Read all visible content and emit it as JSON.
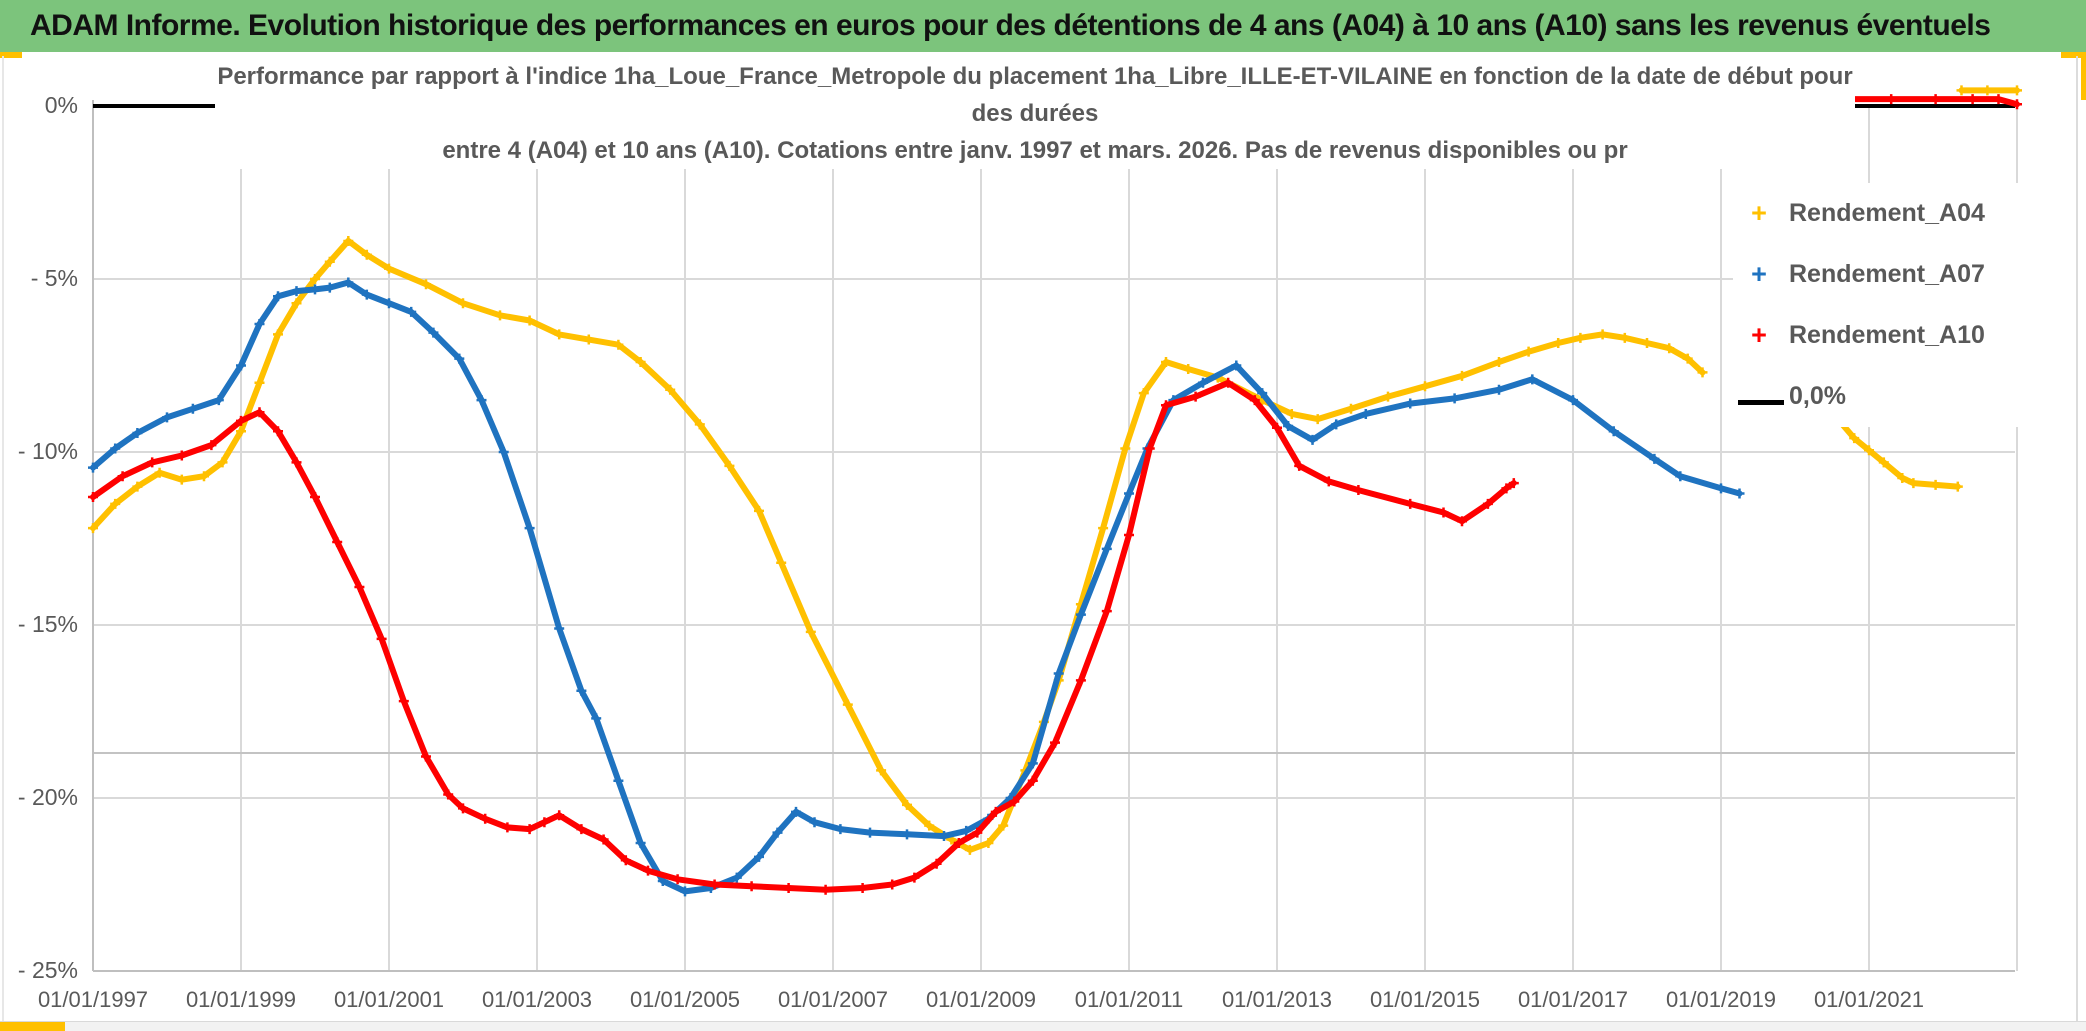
{
  "header": {
    "title": "ADAM Informe. Evolution historique des performances en euros pour des détentions de 4 ans (A04) à 10 ans (A10) sans les revenus éventuels"
  },
  "chart": {
    "title_lines": [
      "Performance par rapport à l'indice 1ha_Loue_France_Metropole  du placement 1ha_Libre_ILLE-ET-VILAINE en fonction de la date de début pour",
      "des durées",
      "entre 4 (A04) et 10 ans (A10). Cotations entre janv. 1997 et mars. 2026. Pas de revenus disponibles ou pr"
    ],
    "legend": [
      {
        "label": "Rendement_A04",
        "marker": "+",
        "color": "#FFC000"
      },
      {
        "label": "Rendement_A07",
        "marker": "+",
        "color": "#1F73C0"
      },
      {
        "label": "Rendement_A10",
        "marker": "+",
        "color": "#FE0000"
      },
      {
        "label": "0,0%",
        "marker": "line",
        "color": "#000000"
      }
    ],
    "colors": {
      "header_green": "#7CC47C",
      "gold": "#FFC000",
      "grid": "#D9D9D9",
      "axis": "#BFBFBF",
      "text_gray": "#595959",
      "zero_line": "#000000"
    }
  },
  "chart_data": {
    "type": "line",
    "title": "Performance par rapport à l'indice 1ha_Loue_France_Metropole du placement 1ha_Libre_ILLE-ET-VILAINE en fonction de la date de début pour des durées entre 4 (A04) et 10 ans (A10). Cotations entre janv. 1997 et mars. 2026. Pas de revenus disponibles ou pr",
    "x_axis": {
      "tick_labels": [
        "01/01/1997",
        "01/01/1999",
        "01/01/2001",
        "01/01/2003",
        "01/01/2005",
        "01/01/2007",
        "01/01/2009",
        "01/01/2011",
        "01/01/2013",
        "01/01/2015",
        "01/01/2017",
        "01/01/2019",
        "01/01/2021"
      ],
      "start_year": 1997,
      "end_year": 2023,
      "tick_interval_years": 2
    },
    "y_axis": {
      "tick_labels": [
        "0%",
        "- 5%",
        "- 10%",
        "- 15%",
        "- 20%",
        "- 25%"
      ],
      "values": [
        0,
        -5,
        -10,
        -15,
        -20,
        -25
      ],
      "unit": "%",
      "ylim": [
        -25,
        0
      ]
    },
    "zero_line": {
      "label": "0,0%",
      "value": 0
    },
    "extra_axis_line_value": -18.7,
    "series": [
      {
        "name": "Rendement_A04",
        "color": "#FFC000",
        "segments": [
          [
            [
              1997.0,
              -12.2
            ],
            [
              1997.3,
              -11.5
            ],
            [
              1997.6,
              -11.0
            ],
            [
              1997.9,
              -10.6
            ],
            [
              1998.2,
              -10.8
            ],
            [
              1998.5,
              -10.7
            ],
            [
              1998.75,
              -10.3
            ],
            [
              1999.0,
              -9.4
            ],
            [
              1999.25,
              -8.0
            ],
            [
              1999.5,
              -6.6
            ],
            [
              1999.75,
              -5.7
            ],
            [
              2000.0,
              -5.0
            ],
            [
              2000.2,
              -4.5
            ],
            [
              2000.45,
              -3.9
            ],
            [
              2000.7,
              -4.3
            ],
            [
              2001.0,
              -4.7
            ],
            [
              2001.5,
              -5.15
            ],
            [
              2002.0,
              -5.7
            ],
            [
              2002.5,
              -6.05
            ],
            [
              2002.9,
              -6.2
            ],
            [
              2003.3,
              -6.6
            ],
            [
              2003.7,
              -6.75
            ],
            [
              2004.1,
              -6.9
            ],
            [
              2004.4,
              -7.4
            ],
            [
              2004.8,
              -8.2
            ],
            [
              2005.2,
              -9.2
            ],
            [
              2005.6,
              -10.4
            ],
            [
              2006.0,
              -11.7
            ],
            [
              2006.3,
              -13.2
            ],
            [
              2006.7,
              -15.2
            ],
            [
              2007.2,
              -17.3
            ],
            [
              2007.65,
              -19.2
            ],
            [
              2008.0,
              -20.2
            ],
            [
              2008.3,
              -20.8
            ],
            [
              2008.6,
              -21.2
            ],
            [
              2008.85,
              -21.5
            ],
            [
              2009.1,
              -21.3
            ],
            [
              2009.3,
              -20.8
            ],
            [
              2009.6,
              -19.2
            ],
            [
              2009.85,
              -17.8
            ],
            [
              2010.05,
              -16.6
            ],
            [
              2010.35,
              -14.4
            ],
            [
              2010.65,
              -12.2
            ],
            [
              2010.95,
              -9.9
            ],
            [
              2011.2,
              -8.3
            ],
            [
              2011.5,
              -7.4
            ],
            [
              2011.8,
              -7.6
            ],
            [
              2012.2,
              -7.85
            ],
            [
              2012.8,
              -8.5
            ],
            [
              2013.2,
              -8.9
            ],
            [
              2013.55,
              -9.05
            ],
            [
              2014.0,
              -8.75
            ],
            [
              2014.5,
              -8.4
            ],
            [
              2015.0,
              -8.1
            ],
            [
              2015.5,
              -7.8
            ],
            [
              2016.0,
              -7.4
            ],
            [
              2016.4,
              -7.1
            ],
            [
              2016.8,
              -6.85
            ],
            [
              2017.1,
              -6.7
            ],
            [
              2017.4,
              -6.6
            ],
            [
              2017.7,
              -6.7
            ],
            [
              2018.0,
              -6.85
            ],
            [
              2018.3,
              -7.0
            ],
            [
              2018.55,
              -7.3
            ],
            [
              2018.75,
              -7.7
            ]
          ],
          [
            [
              2020.6,
              -9.1
            ],
            [
              2020.8,
              -9.6
            ],
            [
              2021.0,
              -9.95
            ],
            [
              2021.2,
              -10.3
            ],
            [
              2021.45,
              -10.75
            ],
            [
              2021.6,
              -10.9
            ],
            [
              2021.9,
              -10.95
            ],
            [
              2022.2,
              -11.0
            ]
          ],
          [
            [
              2022.25,
              0.45
            ],
            [
              2022.6,
              0.45
            ],
            [
              2023.0,
              0.45
            ]
          ]
        ]
      },
      {
        "name": "Rendement_A07",
        "color": "#1F73C0",
        "segments": [
          [
            [
              1997.0,
              -10.45
            ],
            [
              1997.3,
              -9.9
            ],
            [
              1997.6,
              -9.45
            ],
            [
              1998.0,
              -9.0
            ],
            [
              1998.35,
              -8.75
            ],
            [
              1998.7,
              -8.5
            ],
            [
              1999.0,
              -7.5
            ],
            [
              1999.25,
              -6.3
            ],
            [
              1999.5,
              -5.5
            ],
            [
              1999.75,
              -5.35
            ],
            [
              2000.0,
              -5.3
            ],
            [
              2000.2,
              -5.25
            ],
            [
              2000.45,
              -5.1
            ],
            [
              2000.7,
              -5.45
            ],
            [
              2001.0,
              -5.7
            ],
            [
              2001.3,
              -5.95
            ],
            [
              2001.6,
              -6.55
            ],
            [
              2001.95,
              -7.3
            ],
            [
              2002.25,
              -8.5
            ],
            [
              2002.55,
              -10.0
            ],
            [
              2002.9,
              -12.2
            ],
            [
              2003.3,
              -15.1
            ],
            [
              2003.6,
              -16.9
            ],
            [
              2003.8,
              -17.7
            ],
            [
              2004.1,
              -19.5
            ],
            [
              2004.4,
              -21.3
            ],
            [
              2004.7,
              -22.4
            ],
            [
              2005.0,
              -22.7
            ],
            [
              2005.35,
              -22.6
            ],
            [
              2005.7,
              -22.3
            ],
            [
              2006.0,
              -21.7
            ],
            [
              2006.25,
              -21.0
            ],
            [
              2006.5,
              -20.4
            ],
            [
              2006.75,
              -20.7
            ],
            [
              2007.1,
              -20.9
            ],
            [
              2007.5,
              -21.0
            ],
            [
              2008.0,
              -21.05
            ],
            [
              2008.5,
              -21.1
            ],
            [
              2008.8,
              -20.95
            ],
            [
              2009.1,
              -20.6
            ],
            [
              2009.4,
              -20.0
            ],
            [
              2009.7,
              -19.0
            ],
            [
              2010.05,
              -16.4
            ],
            [
              2010.35,
              -14.7
            ],
            [
              2010.7,
              -12.8
            ],
            [
              2011.0,
              -11.2
            ],
            [
              2011.25,
              -9.9
            ],
            [
              2011.6,
              -8.5
            ],
            [
              2012.0,
              -8.0
            ],
            [
              2012.45,
              -7.5
            ],
            [
              2012.8,
              -8.3
            ],
            [
              2013.15,
              -9.25
            ],
            [
              2013.48,
              -9.65
            ],
            [
              2013.8,
              -9.2
            ],
            [
              2014.2,
              -8.9
            ],
            [
              2014.8,
              -8.6
            ],
            [
              2015.4,
              -8.45
            ],
            [
              2016.0,
              -8.2
            ],
            [
              2016.45,
              -7.9
            ],
            [
              2017.0,
              -8.5
            ],
            [
              2017.55,
              -9.4
            ],
            [
              2018.1,
              -10.2
            ],
            [
              2018.45,
              -10.7
            ],
            [
              2019.0,
              -11.05
            ],
            [
              2019.25,
              -11.2
            ]
          ]
        ]
      },
      {
        "name": "Rendement_A10",
        "color": "#FE0000",
        "segments": [
          [
            [
              1997.0,
              -11.3
            ],
            [
              1997.4,
              -10.7
            ],
            [
              1997.8,
              -10.3
            ],
            [
              1998.2,
              -10.1
            ],
            [
              1998.6,
              -9.8
            ],
            [
              1999.0,
              -9.1
            ],
            [
              1999.25,
              -8.85
            ],
            [
              1999.5,
              -9.4
            ],
            [
              1999.75,
              -10.3
            ],
            [
              2000.0,
              -11.3
            ],
            [
              2000.3,
              -12.6
            ],
            [
              2000.6,
              -13.9
            ],
            [
              2000.9,
              -15.4
            ],
            [
              2001.2,
              -17.2
            ],
            [
              2001.5,
              -18.8
            ],
            [
              2001.8,
              -19.9
            ],
            [
              2002.0,
              -20.3
            ],
            [
              2002.3,
              -20.6
            ],
            [
              2002.6,
              -20.85
            ],
            [
              2002.9,
              -20.9
            ],
            [
              2003.1,
              -20.7
            ],
            [
              2003.3,
              -20.5
            ],
            [
              2003.6,
              -20.9
            ],
            [
              2003.9,
              -21.2
            ],
            [
              2004.2,
              -21.8
            ],
            [
              2004.5,
              -22.1
            ],
            [
              2004.9,
              -22.35
            ],
            [
              2005.4,
              -22.5
            ],
            [
              2005.9,
              -22.55
            ],
            [
              2006.4,
              -22.6
            ],
            [
              2006.9,
              -22.65
            ],
            [
              2007.4,
              -22.6
            ],
            [
              2007.8,
              -22.5
            ],
            [
              2008.1,
              -22.3
            ],
            [
              2008.4,
              -21.9
            ],
            [
              2008.7,
              -21.3
            ],
            [
              2008.95,
              -21.0
            ],
            [
              2009.2,
              -20.4
            ],
            [
              2009.45,
              -20.1
            ],
            [
              2009.7,
              -19.5
            ],
            [
              2010.0,
              -18.4
            ],
            [
              2010.35,
              -16.6
            ],
            [
              2010.7,
              -14.6
            ],
            [
              2011.0,
              -12.4
            ],
            [
              2011.28,
              -9.9
            ],
            [
              2011.5,
              -8.65
            ],
            [
              2011.9,
              -8.4
            ],
            [
              2012.34,
              -8.0
            ],
            [
              2012.7,
              -8.5
            ],
            [
              2013.0,
              -9.3
            ],
            [
              2013.3,
              -10.4
            ],
            [
              2013.7,
              -10.85
            ],
            [
              2014.1,
              -11.1
            ],
            [
              2014.8,
              -11.5
            ],
            [
              2015.25,
              -11.75
            ],
            [
              2015.5,
              -12.0
            ],
            [
              2015.85,
              -11.5
            ],
            [
              2016.1,
              -11.05
            ],
            [
              2016.2,
              -10.9
            ]
          ],
          [
            [
              2020.77,
              0.2
            ],
            [
              2021.3,
              0.2
            ],
            [
              2021.9,
              0.2
            ],
            [
              2022.4,
              0.2
            ],
            [
              2022.75,
              0.2
            ],
            [
              2023.0,
              0.05
            ]
          ]
        ]
      }
    ],
    "legend_position": "right",
    "grid": true
  }
}
